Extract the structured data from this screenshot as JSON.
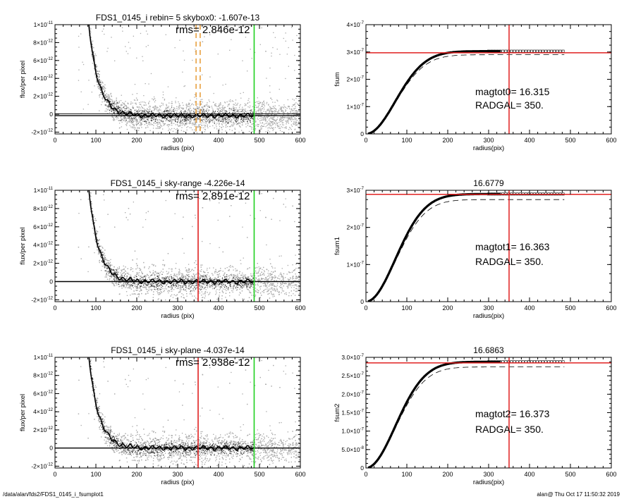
{
  "footer": {
    "path": "/data/alan/fds2/FDS1_0145_i_fsumplot1",
    "stamp": "alan@  Thu Oct 17 11:50:32 2019"
  },
  "colors": {
    "sky_dashed": "#e8a040",
    "radgal": "#e02020",
    "boundary": "#20d020",
    "scatter": "#a8a8a8"
  },
  "chart_data": [
    {
      "type": "scatter",
      "panel": "profile-1",
      "title": "FDS1_0145_i rebin= 5    skybox0: -1.607e-13",
      "annotations": [
        "rms= 2.846e-12"
      ],
      "xlabel": "radius (pix)",
      "ylabel": "flux/per pixel",
      "xlim": [
        0,
        600
      ],
      "ylim": [
        -2.2e-12,
        1e-11
      ],
      "xticks": [
        0,
        100,
        200,
        300,
        400,
        500,
        600
      ],
      "yticks": [
        {
          "v": -2e-12,
          "m": "-2×10",
          "e": "-12"
        },
        {
          "v": 0,
          "m": "0",
          "e": ""
        },
        {
          "v": 2e-12,
          "m": "2×10",
          "e": "-12"
        },
        {
          "v": 4e-12,
          "m": "4×10",
          "e": "-12"
        },
        {
          "v": 6e-12,
          "m": "6×10",
          "e": "-12"
        },
        {
          "v": 8e-12,
          "m": "8×10",
          "e": "-12"
        },
        {
          "v": 1e-11,
          "m": "1×10",
          "e": "-11"
        }
      ],
      "profile": {
        "amplitude": 3.2e-10,
        "scale_length": 24,
        "baseline": -1.6e-13
      },
      "hlines": [
        {
          "y": -1.6e-13,
          "style": "solid"
        },
        {
          "y": 5e-14,
          "style": "solid-thin"
        }
      ],
      "vlines": [
        {
          "x": 345,
          "color": "#e8a040",
          "style": "dashed"
        },
        {
          "x": 355,
          "color": "#e8a040",
          "style": "dashed"
        },
        {
          "x": 487,
          "color": "#20d020",
          "style": "solid"
        }
      ]
    },
    {
      "type": "line",
      "panel": "growth-1",
      "title": "",
      "annotations": [
        "magtot0=  16.315",
        "RADGAL=    350."
      ],
      "xlabel": "radius(pix)",
      "ylabel": "fsum",
      "xlim": [
        0,
        600
      ],
      "ylim": [
        0,
        4e-07
      ],
      "xticks": [
        0,
        100,
        200,
        300,
        400,
        500,
        600
      ],
      "yticks": [
        {
          "v": 0,
          "m": "0",
          "e": ""
        },
        {
          "v": 1e-07,
          "m": "1×10",
          "e": "-7"
        },
        {
          "v": 2e-07,
          "m": "2×10",
          "e": "-7"
        },
        {
          "v": 3e-07,
          "m": "3×10",
          "e": "-7"
        },
        {
          "v": 4e-07,
          "m": "4×10",
          "e": "-7"
        }
      ],
      "curve": {
        "asymptote": 3.03e-07,
        "dashed_asymptote": 2.9e-07,
        "xmax": 487
      },
      "hline": 2.97e-07,
      "vline": 350
    },
    {
      "type": "scatter",
      "panel": "profile-2",
      "title": "FDS1_0145_i sky-range -4.226e-14",
      "annotations": [
        "rms= 2.891e-12"
      ],
      "xlabel": "radius (pix)",
      "ylabel": "flux/per pixel",
      "xlim": [
        0,
        600
      ],
      "ylim": [
        -2.2e-12,
        1e-11
      ],
      "xticks": [
        0,
        100,
        200,
        300,
        400,
        500,
        600
      ],
      "yticks": [
        {
          "v": -2e-12,
          "m": "-2×10",
          "e": "-12"
        },
        {
          "v": 0,
          "m": "0",
          "e": ""
        },
        {
          "v": 2e-12,
          "m": "2×10",
          "e": "-12"
        },
        {
          "v": 4e-12,
          "m": "4×10",
          "e": "-12"
        },
        {
          "v": 6e-12,
          "m": "6×10",
          "e": "-12"
        },
        {
          "v": 8e-12,
          "m": "8×10",
          "e": "-12"
        },
        {
          "v": 1e-11,
          "m": "1×10",
          "e": "-11"
        }
      ],
      "profile": {
        "amplitude": 3.2e-10,
        "scale_length": 24,
        "baseline": 0
      },
      "hlines": [
        {
          "y": 0,
          "style": "solid"
        }
      ],
      "vlines": [
        {
          "x": 350,
          "color": "#e02020",
          "style": "solid"
        },
        {
          "x": 487,
          "color": "#20d020",
          "style": "solid"
        }
      ]
    },
    {
      "type": "line",
      "panel": "growth-2",
      "title": "16.6779",
      "annotations": [
        "magtot1=  16.363",
        "RADGAL=    350."
      ],
      "xlabel": "radius(pix)",
      "ylabel": "fsum1",
      "xlim": [
        0,
        600
      ],
      "ylim": [
        0,
        3e-07
      ],
      "xticks": [
        0,
        100,
        200,
        300,
        400,
        500,
        600
      ],
      "yticks": [
        {
          "v": 0,
          "m": "0",
          "e": ""
        },
        {
          "v": 1e-07,
          "m": "1×10",
          "e": "-7"
        },
        {
          "v": 2e-07,
          "m": "2×10",
          "e": "-7"
        },
        {
          "v": 3e-07,
          "m": "3×10",
          "e": "-7"
        }
      ],
      "curve": {
        "asymptote": 2.9e-07,
        "dashed_asymptote": 2.75e-07,
        "xmax": 487
      },
      "hline": 2.89e-07,
      "vline": 350
    },
    {
      "type": "scatter",
      "panel": "profile-3",
      "title": "FDS1_0145_i sky-plane -4.037e-14",
      "annotations": [
        "rms= 2.938e-12"
      ],
      "xlabel": "radius (pix)",
      "ylabel": "flux/per pixel",
      "xlim": [
        0,
        600
      ],
      "ylim": [
        -2.2e-12,
        1e-11
      ],
      "xticks": [
        0,
        100,
        200,
        300,
        400,
        500,
        600
      ],
      "yticks": [
        {
          "v": -2e-12,
          "m": "-2×10",
          "e": "-12"
        },
        {
          "v": 0,
          "m": "0",
          "e": ""
        },
        {
          "v": 2e-12,
          "m": "2×10",
          "e": "-12"
        },
        {
          "v": 4e-12,
          "m": "4×10",
          "e": "-12"
        },
        {
          "v": 6e-12,
          "m": "6×10",
          "e": "-12"
        },
        {
          "v": 8e-12,
          "m": "8×10",
          "e": "-12"
        },
        {
          "v": 1e-11,
          "m": "1×10",
          "e": "-11"
        }
      ],
      "profile": {
        "amplitude": 3.2e-10,
        "scale_length": 24,
        "baseline": 0
      },
      "hlines": [
        {
          "y": 0,
          "style": "solid"
        }
      ],
      "vlines": [
        {
          "x": 350,
          "color": "#e02020",
          "style": "solid"
        },
        {
          "x": 487,
          "color": "#20d020",
          "style": "solid"
        }
      ]
    },
    {
      "type": "line",
      "panel": "growth-3",
      "title": "16.6863",
      "annotations": [
        "magtot2=  16.373",
        "RADGAL=    350."
      ],
      "xlabel": "radius(pix)",
      "ylabel": "fsum2",
      "xlim": [
        0,
        600
      ],
      "ylim": [
        0,
        3e-07
      ],
      "xticks": [
        0,
        100,
        200,
        300,
        400,
        500,
        600
      ],
      "yticks": [
        {
          "v": 0,
          "m": "0",
          "e": ""
        },
        {
          "v": 5e-08,
          "m": "5.0×10",
          "e": "-8"
        },
        {
          "v": 1e-07,
          "m": "1.0×10",
          "e": "-7"
        },
        {
          "v": 1.5e-07,
          "m": "1.5×10",
          "e": "-7"
        },
        {
          "v": 2e-07,
          "m": "2.0×10",
          "e": "-7"
        },
        {
          "v": 2.5e-07,
          "m": "2.5×10",
          "e": "-7"
        },
        {
          "v": 3e-07,
          "m": "3.0×10",
          "e": "-7"
        }
      ],
      "curve": {
        "asymptote": 2.88e-07,
        "dashed_asymptote": 2.74e-07,
        "xmax": 487
      },
      "hline": 2.85e-07,
      "vline": 350
    }
  ]
}
